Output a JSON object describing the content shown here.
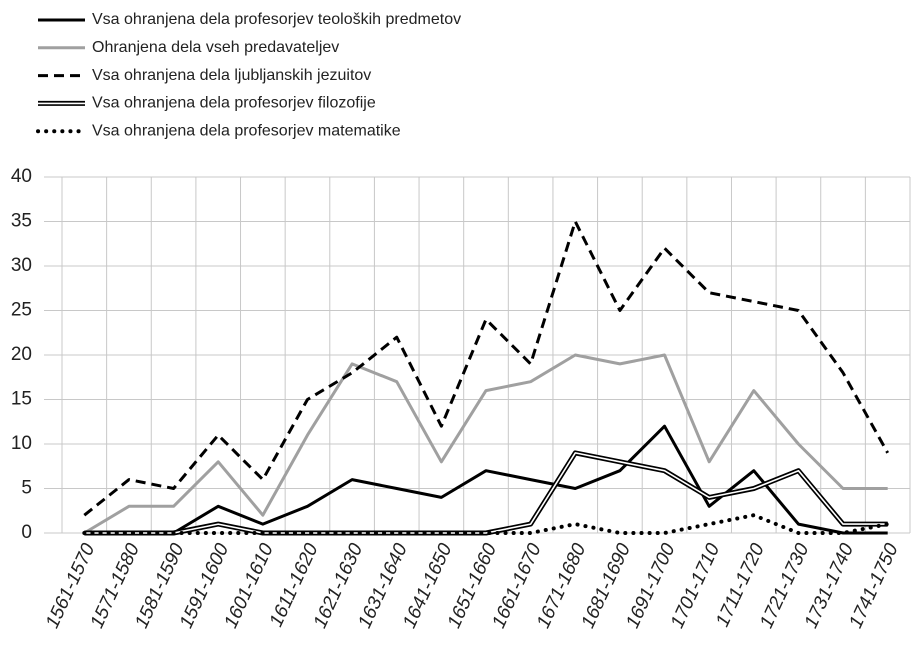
{
  "chart_data": {
    "type": "line",
    "categories": [
      "1561-1570",
      "1571-1580",
      "1581-1590",
      "1591-1600",
      "1601-1610",
      "1611-1620",
      "1621-1630",
      "1631-1640",
      "1641-1650",
      "1651-1660",
      "1661-1670",
      "1671-1680",
      "1681-1690",
      "1691-1700",
      "1701-1710",
      "1711-1720",
      "1721-1730",
      "1731-1740",
      "1741-1750"
    ],
    "series": [
      {
        "name": "Vsa ohranjena dela profesorjev teoloških predmetov",
        "color": "#000000",
        "line_style": "solid",
        "values": [
          0,
          0,
          0,
          3,
          1,
          3,
          6,
          5,
          4,
          7,
          6,
          5,
          7,
          12,
          3,
          7,
          1,
          0,
          0
        ]
      },
      {
        "name": "Ohranjena dela vseh predavateljev",
        "color": "#a0a0a0",
        "line_style": "solid",
        "values": [
          0,
          3,
          3,
          8,
          2,
          11,
          19,
          17,
          8,
          16,
          17,
          20,
          19,
          20,
          8,
          16,
          10,
          5,
          5
        ]
      },
      {
        "name": "Vsa ohranjena dela ljubljanskih jezuitov",
        "color": "#000000",
        "line_style": "dashed",
        "values": [
          2,
          6,
          5,
          11,
          6,
          15,
          18,
          22,
          12,
          24,
          19,
          35,
          25,
          32,
          27,
          26,
          25,
          18,
          9
        ]
      },
      {
        "name": "Vsa ohranjena dela profesorjev filozofije",
        "color": "#000000",
        "line_style": "double",
        "values": [
          0,
          0,
          0,
          1,
          0,
          0,
          0,
          0,
          0,
          0,
          1,
          9,
          8,
          7,
          4,
          5,
          7,
          1,
          1
        ]
      },
      {
        "name": "Vsa ohranjena dela profesorjev matematike",
        "color": "#000000",
        "line_style": "dotted",
        "values": [
          0,
          0,
          0,
          0,
          0,
          0,
          0,
          0,
          0,
          0,
          0,
          1,
          0,
          0,
          1,
          2,
          0,
          0,
          1
        ]
      }
    ],
    "ylim": [
      0,
      40
    ],
    "yticks": [
      0,
      5,
      10,
      15,
      20,
      25,
      30,
      35,
      40
    ],
    "grid": true,
    "legend": "top-left"
  }
}
